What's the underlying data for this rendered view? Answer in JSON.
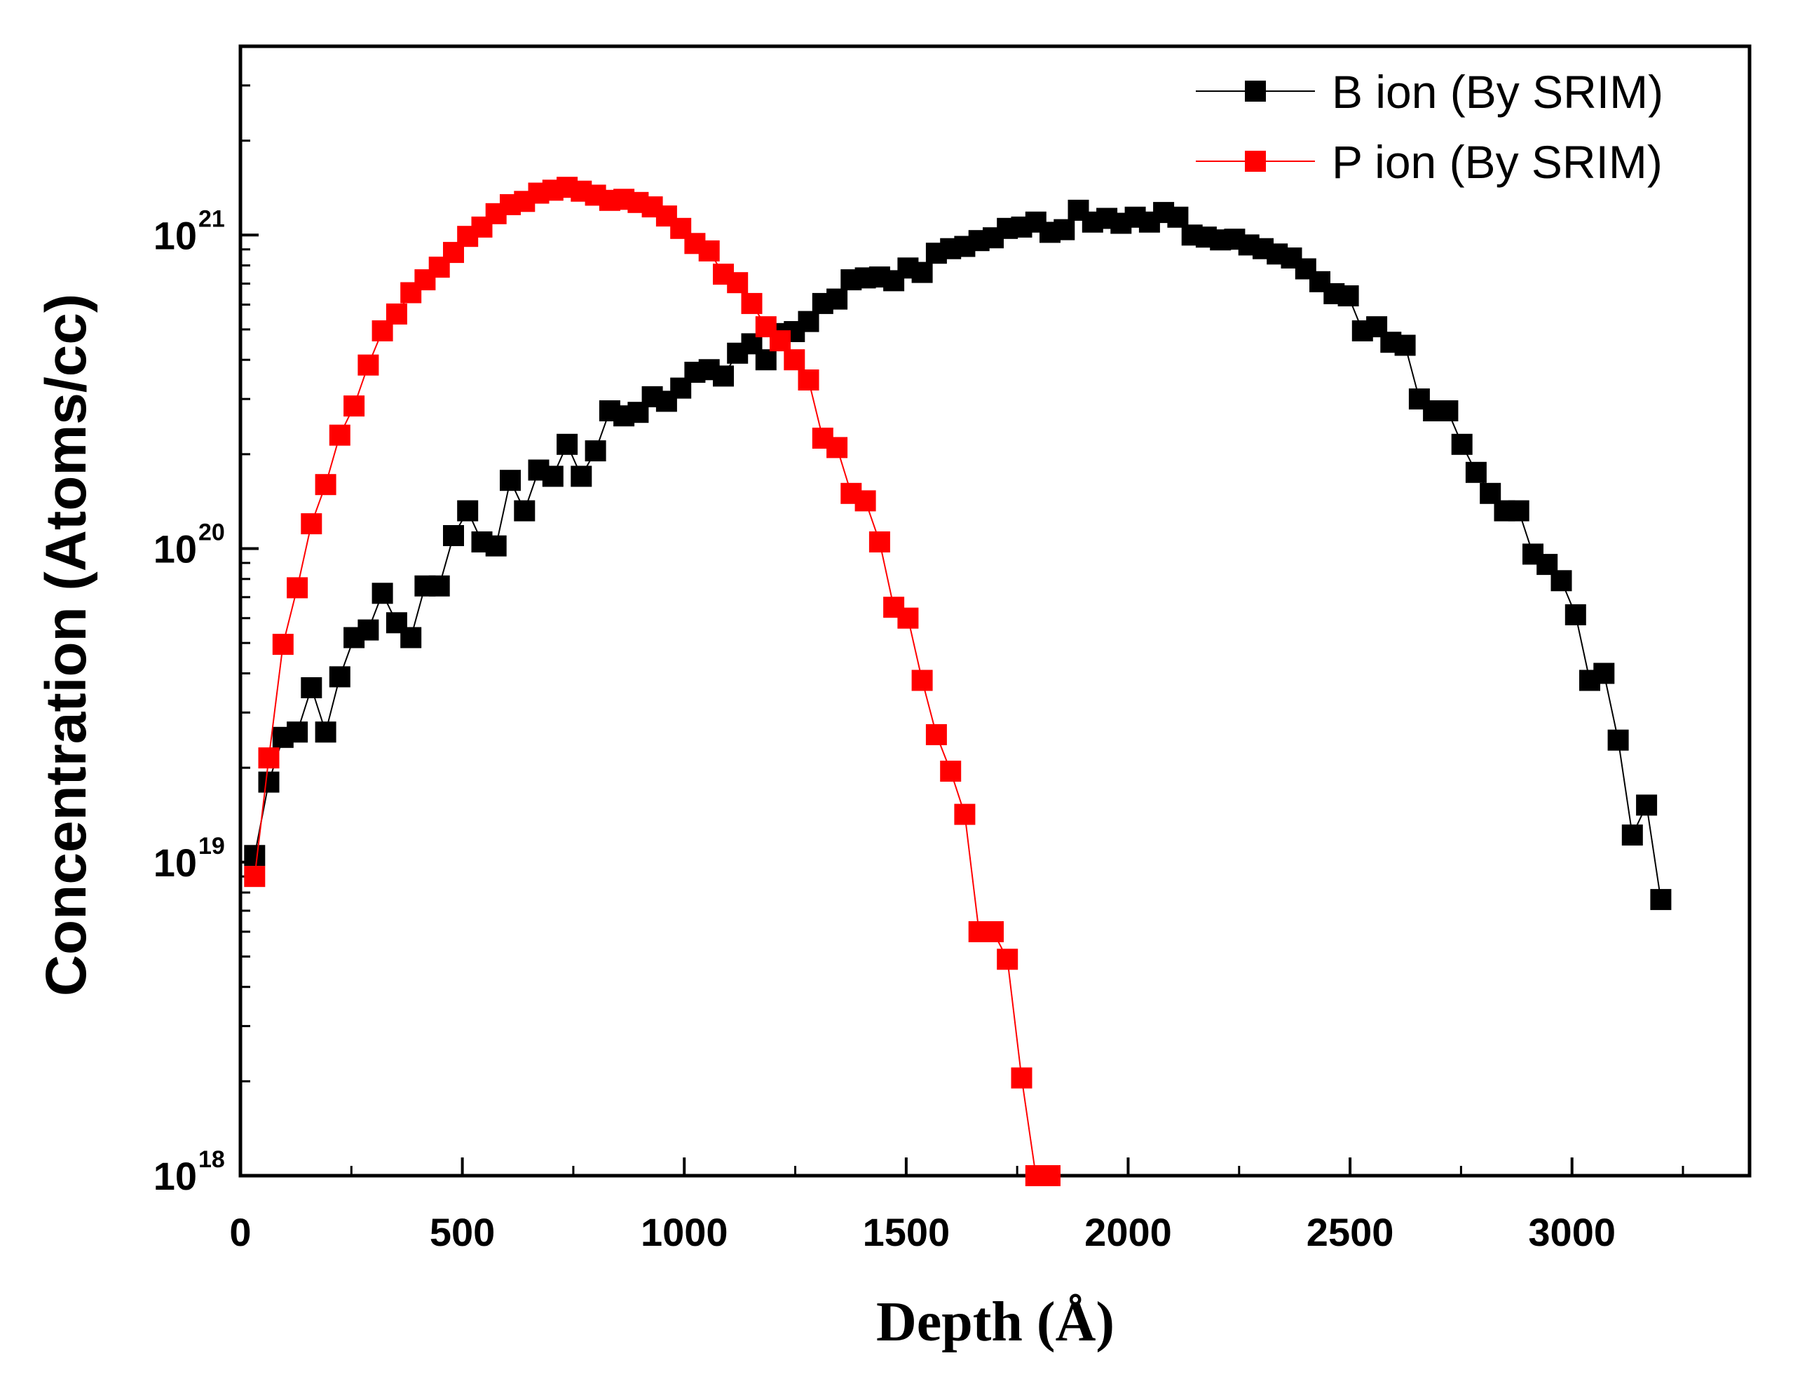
{
  "chart_data": {
    "type": "scatter",
    "title": "",
    "xlabel": "Depth (Å)",
    "ylabel": "Concentration (Atoms/cc)",
    "xlim": [
      0,
      3400
    ],
    "ylim": [
      1e+18,
      4e+21
    ],
    "yscale": "log",
    "grid": false,
    "legend_position": "top-right",
    "x_ticks": [
      "0",
      "500",
      "1000",
      "1500",
      "2000",
      "2500",
      "3000"
    ],
    "y_ticks": [
      {
        "base": "10",
        "exp": "18"
      },
      {
        "base": "10",
        "exp": "19"
      },
      {
        "base": "10",
        "exp": "20"
      },
      {
        "base": "10",
        "exp": "21"
      }
    ],
    "series": [
      {
        "name": "B ion (By SRIM)",
        "color": "#000000",
        "marker": "square",
        "x": [
          32,
          64,
          96,
          128,
          160,
          192,
          224,
          256,
          288,
          320,
          352,
          384,
          416,
          448,
          480,
          512,
          544,
          576,
          608,
          640,
          672,
          704,
          736,
          768,
          800,
          832,
          864,
          896,
          928,
          960,
          992,
          1024,
          1056,
          1088,
          1120,
          1152,
          1184,
          1216,
          1248,
          1280,
          1312,
          1344,
          1376,
          1408,
          1440,
          1472,
          1504,
          1536,
          1568,
          1600,
          1632,
          1664,
          1696,
          1728,
          1760,
          1792,
          1824,
          1856,
          1888,
          1920,
          1952,
          1984,
          2016,
          2048,
          2080,
          2112,
          2144,
          2176,
          2208,
          2240,
          2272,
          2304,
          2336,
          2368,
          2400,
          2432,
          2464,
          2496,
          2528,
          2560,
          2592,
          2624,
          2656,
          2688,
          2720,
          2752,
          2784,
          2816,
          2848,
          2880,
          2912,
          2944,
          2976,
          3008,
          3040,
          3072,
          3104,
          3136,
          3168,
          3200
        ],
        "y": [
          1.05e+19,
          1.8e+19,
          2.5e+19,
          2.6e+19,
          3.6e+19,
          2.6e+19,
          3.9e+19,
          5.2e+19,
          5.5e+19,
          7.2e+19,
          5.8e+19,
          5.2e+19,
          7.6e+19,
          7.6e+19,
          1.1e+20,
          1.32e+20,
          1.05e+20,
          1.02e+20,
          1.65e+20,
          1.32e+20,
          1.78e+20,
          1.7e+20,
          2.15e+20,
          1.7e+20,
          2.05e+20,
          2.75e+20,
          2.65e+20,
          2.72e+20,
          3.05e+20,
          2.95e+20,
          3.25e+20,
          3.65e+20,
          3.72e+20,
          3.55e+20,
          4.2e+20,
          4.5e+20,
          4e+20,
          4.85e+20,
          4.92e+20,
          5.3e+20,
          6.05e+20,
          6.25e+20,
          7.2e+20,
          7.3e+20,
          7.35e+20,
          7.15e+20,
          7.85e+20,
          7.6e+20,
          8.75e+20,
          9.05e+20,
          9.2e+20,
          9.6e+20,
          9.8e+20,
          1.05e+21,
          1.06e+21,
          1.1e+21,
          1.02e+21,
          1.04e+21,
          1.2e+21,
          1.1e+21,
          1.13e+21,
          1.09e+21,
          1.14e+21,
          1.1e+21,
          1.18e+21,
          1.14e+21,
          1e+21,
          9.85e+20,
          9.65e+20,
          9.7e+20,
          9.3e+20,
          9.05e+20,
          8.7e+20,
          8.45e+20,
          7.8e+20,
          7.1e+20,
          6.5e+20,
          6.4e+20,
          4.95e+20,
          5.1e+20,
          4.55e+20,
          4.45e+20,
          3e+20,
          2.75e+20,
          2.75e+20,
          2.15e+20,
          1.75e+20,
          1.5e+20,
          1.32e+20,
          1.32e+20,
          9.6e+19,
          8.9e+19,
          7.9e+19,
          6.15e+19,
          3.8e+19,
          4e+19,
          2.45e+19,
          1.22e+19,
          1.52e+19,
          7.6e+18
        ]
      },
      {
        "name": "P ion (By SRIM)",
        "color": "#ff0000",
        "marker": "square",
        "x": [
          32,
          64,
          96,
          128,
          160,
          192,
          224,
          256,
          288,
          320,
          352,
          384,
          416,
          448,
          480,
          512,
          544,
          576,
          608,
          640,
          672,
          704,
          736,
          768,
          800,
          832,
          864,
          896,
          928,
          960,
          992,
          1024,
          1056,
          1088,
          1120,
          1152,
          1184,
          1216,
          1248,
          1280,
          1312,
          1344,
          1376,
          1408,
          1440,
          1472,
          1504,
          1536,
          1568,
          1600,
          1632,
          1664,
          1696,
          1728,
          1760,
          1792,
          1824
        ],
        "y": [
          9e+18,
          2.15e+19,
          4.95e+19,
          7.5e+19,
          1.2e+20,
          1.6e+20,
          2.3e+20,
          2.85e+20,
          3.85e+20,
          4.95e+20,
          5.6e+20,
          6.55e+20,
          7.2e+20,
          7.9e+20,
          8.8e+20,
          9.9e+20,
          1.06e+21,
          1.17e+21,
          1.25e+21,
          1.28e+21,
          1.36e+21,
          1.39e+21,
          1.42e+21,
          1.38e+21,
          1.34e+21,
          1.29e+21,
          1.3e+21,
          1.27e+21,
          1.23e+21,
          1.15e+21,
          1.05e+21,
          9.4e+20,
          8.9e+20,
          7.5e+20,
          7.05e+20,
          6.05e+20,
          5.1e+20,
          4.6e+20,
          4e+20,
          3.45e+20,
          2.25e+20,
          2.1e+20,
          1.5e+20,
          1.42e+20,
          1.05e+20,
          6.5e+19,
          6e+19,
          3.8e+19,
          2.55e+19,
          1.95e+19,
          1.42e+19,
          6e+18,
          6e+18,
          4.9e+18,
          2.05e+18,
          1e+18,
          1e+18
        ]
      }
    ]
  }
}
